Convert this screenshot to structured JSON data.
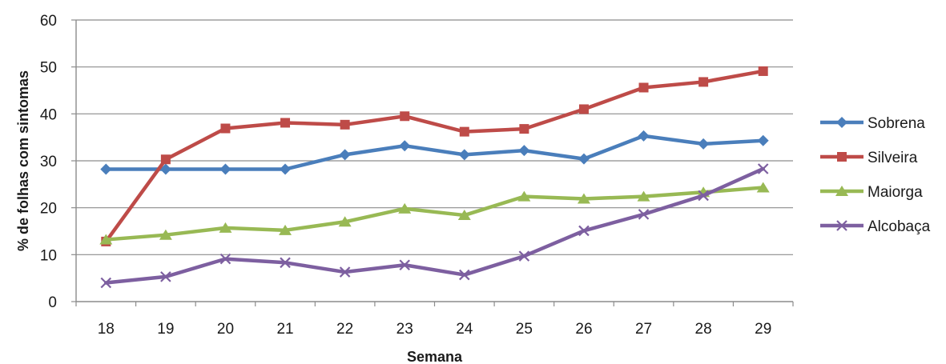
{
  "chart_data": {
    "type": "line",
    "title": "",
    "xlabel": "Semana",
    "ylabel": "% de folhas com sintomas",
    "x": [
      "18",
      "19",
      "20",
      "21",
      "22",
      "23",
      "24",
      "25",
      "26",
      "27",
      "28",
      "29"
    ],
    "ylim": [
      0,
      60
    ],
    "yticks": [
      "0",
      "10",
      "20",
      "30",
      "40",
      "50",
      "60"
    ],
    "grid": true,
    "legend": "right",
    "series": [
      {
        "name": "Sobrena",
        "color": "#4a7ebb",
        "marker": "diamond",
        "values": [
          28.2,
          28.2,
          28.2,
          28.2,
          31.3,
          33.2,
          31.3,
          32.2,
          30.4,
          35.3,
          33.6,
          34.3
        ]
      },
      {
        "name": "Silveira",
        "color": "#be4b48",
        "marker": "square",
        "values": [
          12.8,
          30.3,
          36.9,
          38.1,
          37.7,
          39.5,
          36.2,
          36.8,
          41.0,
          45.6,
          46.8,
          49.1
        ]
      },
      {
        "name": "Maiorga",
        "color": "#98b954",
        "marker": "triangle",
        "values": [
          13.2,
          14.2,
          15.7,
          15.2,
          17.0,
          19.8,
          18.4,
          22.4,
          21.9,
          22.4,
          23.3,
          24.3
        ]
      },
      {
        "name": "Alcobaça",
        "color": "#7d5fa0",
        "marker": "x",
        "values": [
          4.0,
          5.3,
          9.1,
          8.3,
          6.3,
          7.8,
          5.7,
          9.7,
          15.1,
          18.6,
          22.6,
          28.3
        ]
      }
    ]
  }
}
